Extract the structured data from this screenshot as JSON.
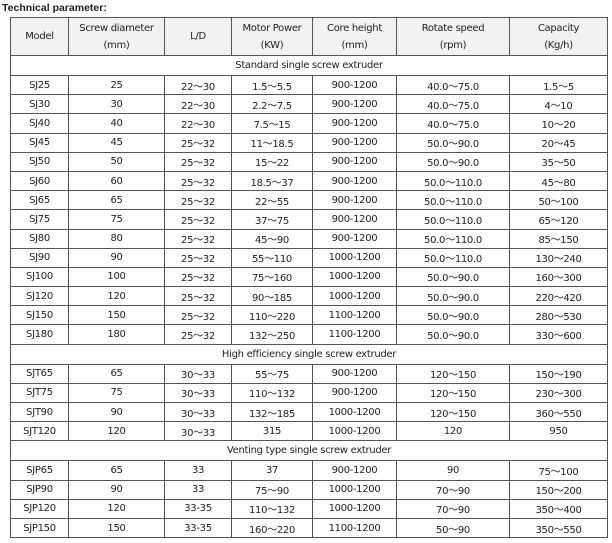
{
  "title": "Technical parameter:",
  "headers": [
    [
      "Model",
      ""
    ],
    [
      "Screw diameter",
      "(mm)"
    ],
    [
      "L/D",
      ""
    ],
    [
      "Motor Power",
      "(KW)"
    ],
    [
      "Core height",
      "(mm)"
    ],
    [
      "Rotate speed",
      "(rpm)"
    ],
    [
      "Capacity",
      "(Kg/h)"
    ]
  ],
  "sections": [
    {
      "name": "Standard single screw extruder",
      "rows": [
        [
          "SJ25",
          "25",
          "22～30",
          "1.5～5.5",
          "900-1200",
          "40.0～75.0",
          "1.5～5"
        ],
        [
          "SJ30",
          "30",
          "22～30",
          "2.2～7.5",
          "900-1200",
          "40.0～75.0",
          "4～10"
        ],
        [
          "SJ40",
          "40",
          "22～30",
          "7.5～15",
          "900-1200",
          "40.0～75.0",
          "10～20"
        ],
        [
          "SJ45",
          "45",
          "25～32",
          "11～18.5",
          "900-1200",
          "50.0～90.0",
          "20～45"
        ],
        [
          "SJ50",
          "50",
          "25～32",
          "15～22",
          "900-1200",
          "50.0～90.0",
          "35～50"
        ],
        [
          "SJ60",
          "60",
          "25～32",
          "18.5～37",
          "900-1200",
          "50.0～110.0",
          "45～80"
        ],
        [
          "SJ65",
          "65",
          "25～32",
          "22～55",
          "900-1200",
          "50.0～110.0",
          "50～100"
        ],
        [
          "SJ75",
          "75",
          "25～32",
          "37～75",
          "900-1200",
          "50.0～110.0",
          "65～120"
        ],
        [
          "SJ80",
          "80",
          "25～32",
          "45～90",
          "900-1200",
          "50.0～110.0",
          "85～150"
        ],
        [
          "SJ90",
          "90",
          "25～32",
          "55～110",
          "1000-1200",
          "50.0～110.0",
          "130～240"
        ],
        [
          "SJ100",
          "100",
          "25～32",
          "75～160",
          "1000-1200",
          "50.0～90.0",
          "160～300"
        ],
        [
          "SJ120",
          "120",
          "25～32",
          "90～185",
          "1000-1200",
          "50.0～90.0",
          "220～420"
        ],
        [
          "SJ150",
          "150",
          "25～32",
          "110～220",
          "1100-1200",
          "50.0～90.0",
          "280～530"
        ],
        [
          "SJ180",
          "180",
          "25～32",
          "132～250",
          "1100-1200",
          "50.0～90.0",
          "330～600"
        ]
      ]
    },
    {
      "name": "High efficiency single screw extruder",
      "rows": [
        [
          "SJT65",
          "65",
          "30～33",
          "55～75",
          "900-1200",
          "120～150",
          "150～190"
        ],
        [
          "SJT75",
          "75",
          "30～33",
          "110～132",
          "900-1200",
          "120～150",
          "230～300"
        ],
        [
          "SJT90",
          "90",
          "30～33",
          "132～185",
          "1000-1200",
          "120～150",
          "360～550"
        ],
        [
          "SJT120",
          "120",
          "30～33",
          "315",
          "1000-1200",
          "120",
          "950"
        ]
      ]
    },
    {
      "name": "Venting type single screw extruder",
      "rows": [
        [
          "SJP65",
          "65",
          "33",
          "37",
          "900-1200",
          "90",
          "75～100"
        ],
        [
          "SJP90",
          "90",
          "33",
          "75～90",
          "1000-1200",
          "70～90",
          "150～200"
        ],
        [
          "SJP120",
          "120",
          "33-35",
          "110～132",
          "1000-1200",
          "70～90",
          "350～400"
        ],
        [
          "SJP150",
          "150",
          "33-35",
          "160～220",
          "1100-1200",
          "50～90",
          "350～550"
        ]
      ]
    }
  ]
}
